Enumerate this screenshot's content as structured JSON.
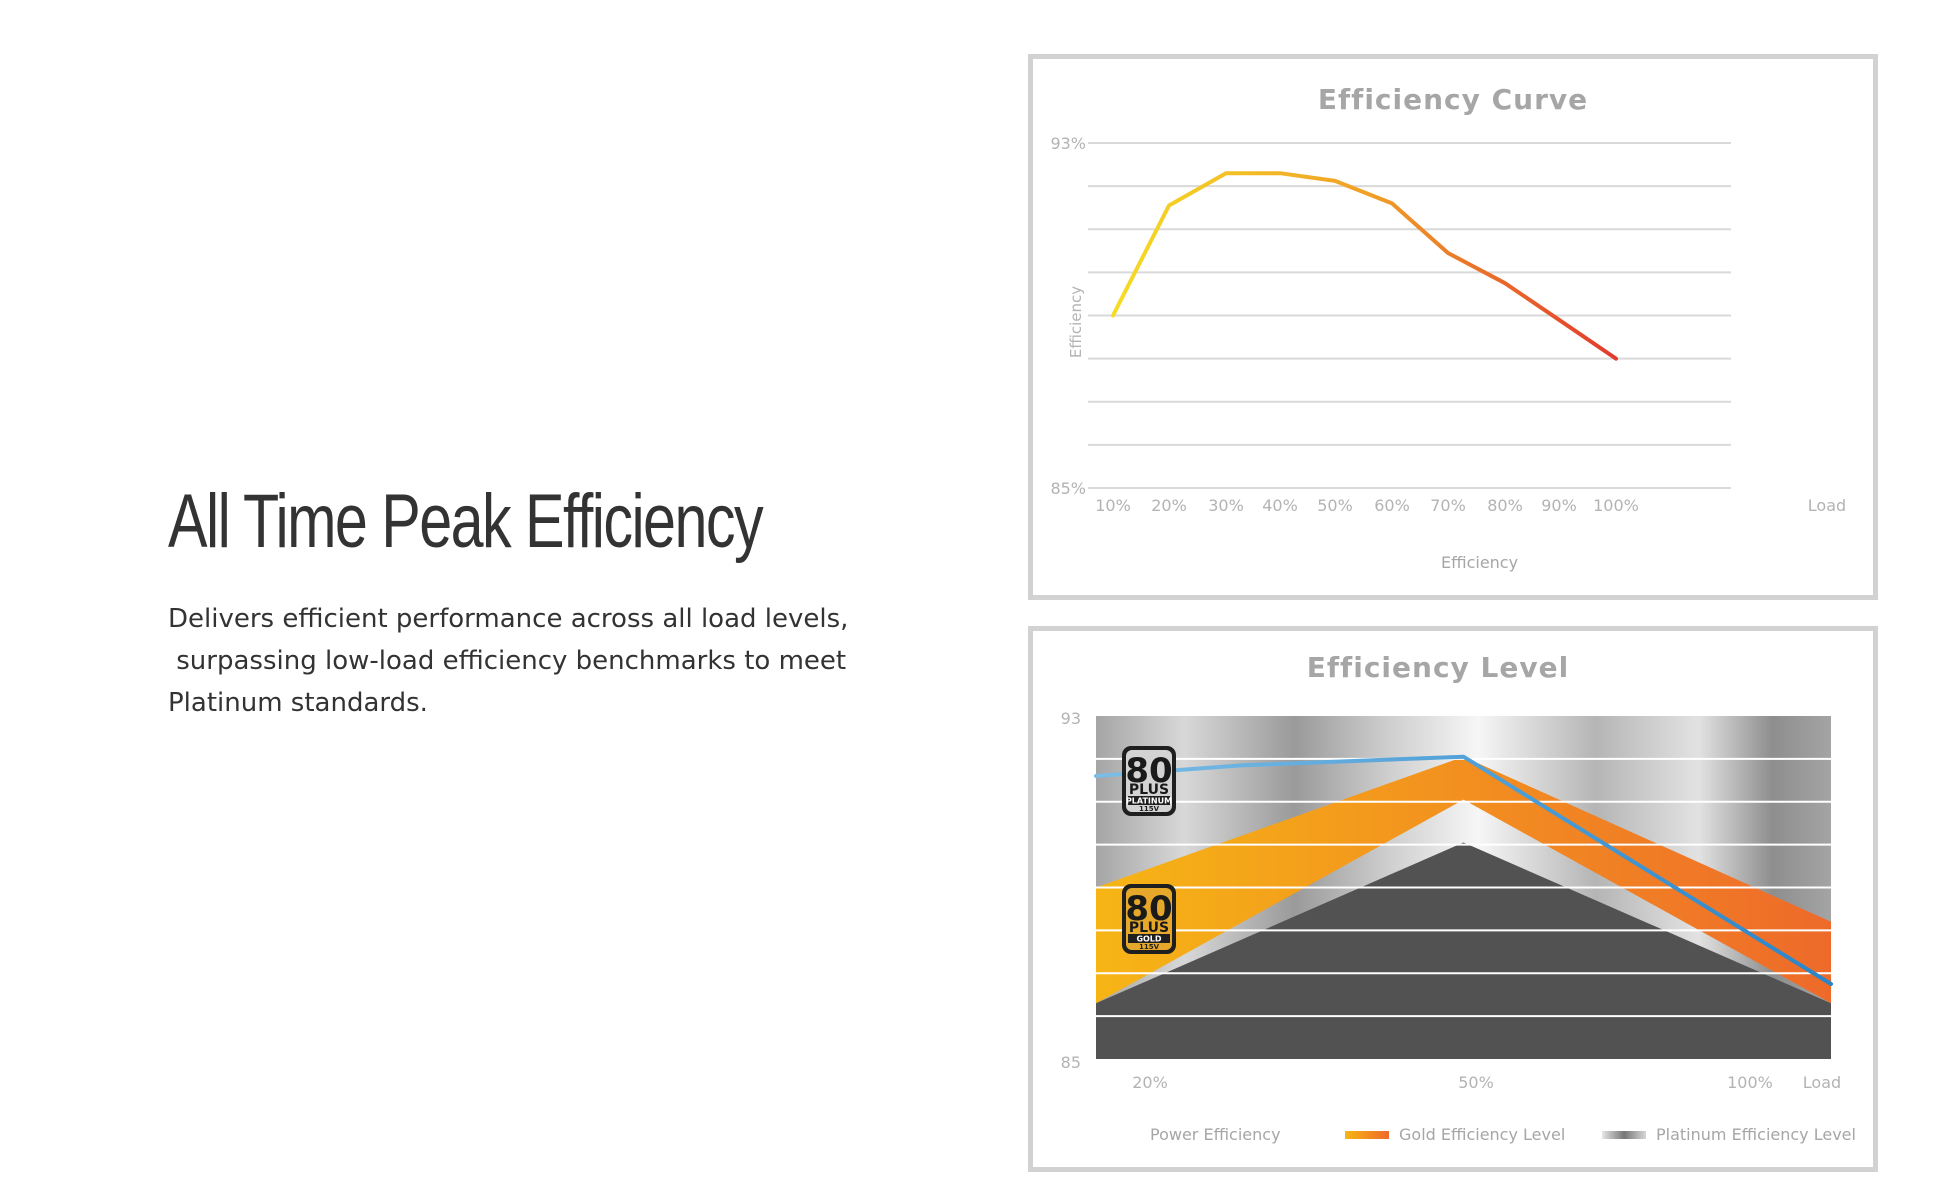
{
  "hero": {
    "title": "All Time Peak Efficiency",
    "description_lines": [
      "Delivers efficient performance across all load levels,",
      " surpassing low-load efficiency benchmarks to meet",
      "Platinum standards."
    ]
  },
  "colors": {
    "curve_start": "#f5dc26",
    "curve_mid": "#f0a126",
    "curve_end": "#e23a2d",
    "grid": "#d9d9d9",
    "power_line_start": "#7bbde7",
    "power_line_end": "#2a85c8",
    "gold_start": "#f6b515",
    "gold_end": "#ee6a2a",
    "platinum_band": "#bcbcbc",
    "base_dark": "#525252"
  },
  "chart_data": [
    {
      "type": "line",
      "title": "Efficiency Curve",
      "ylabel": "Efficiency",
      "xlabel": "Load",
      "categories": [
        "10%",
        "20%",
        "30%",
        "40%",
        "50%",
        "60%",
        "70%",
        "80%",
        "90%",
        "100%"
      ],
      "ylim": [
        85,
        93
      ],
      "y_ticks": [
        "93%",
        "85%"
      ],
      "grid": true,
      "legend_position": "bottom-center",
      "series": [
        {
          "name": "Efficiency",
          "values": [
            89.0,
            91.55,
            92.3,
            92.3,
            92.12,
            91.6,
            90.45,
            89.75,
            88.9,
            88.0
          ]
        }
      ]
    },
    {
      "type": "area",
      "title": "Efficiency Level",
      "xlabel": "Load",
      "categories": [
        "20%",
        "50%",
        "100%"
      ],
      "ylim": [
        85,
        93
      ],
      "y_ticks": [
        "93",
        "85"
      ],
      "grid": true,
      "legend_position": "bottom",
      "series": [
        {
          "name": "Power Efficiency",
          "x": [
            0,
            20,
            50,
            100
          ],
          "values": [
            91.6,
            91.85,
            92.05,
            86.75
          ]
        },
        {
          "name": "Gold Efficiency Level",
          "x": [
            0,
            50,
            100
          ],
          "band_bottom": [
            86.3,
            91.05,
            86.3
          ],
          "values": [
            89.0,
            92.05,
            88.2
          ]
        },
        {
          "name": "Platinum Efficiency Level",
          "x": [
            0,
            100
          ],
          "band_bottom": [
            85,
            85
          ],
          "values": [
            93,
            93
          ]
        }
      ],
      "base_area": {
        "x": [
          0,
          50,
          100
        ],
        "values": [
          86.3,
          90.05,
          86.3
        ]
      },
      "badges": [
        {
          "big": "80",
          "plus": "PLUS",
          "level": "PLATINUM",
          "volt": "115V"
        },
        {
          "big": "80",
          "plus": "PLUS",
          "level": "GOLD",
          "volt": "115V"
        }
      ]
    }
  ]
}
